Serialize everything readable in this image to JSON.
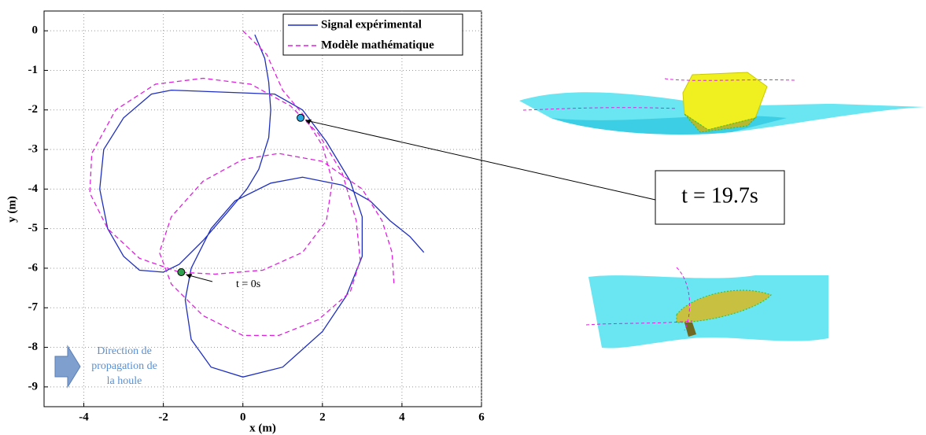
{
  "chart_data": {
    "type": "line",
    "xlabel": "x (m)",
    "ylabel": "y (m)",
    "xlim": [
      -5,
      6
    ],
    "ylim": [
      -9.5,
      0.5
    ],
    "xticks": [
      -4,
      -2,
      0,
      2,
      4,
      6
    ],
    "yticks": [
      0,
      -1,
      -2,
      -3,
      -4,
      -5,
      -6,
      -7,
      -8,
      -9
    ],
    "grid": true,
    "legend": "upper right",
    "series": [
      {
        "name": "Signal expérimental",
        "color": "#1f2fbf",
        "dash": false,
        "x": [
          0.3,
          0.55,
          0.65,
          0.7,
          0.65,
          0.4,
          0.1,
          -0.4,
          -1.0,
          -1.6,
          -2.0,
          -2.6,
          -3.0,
          -3.4,
          -3.6,
          -3.5,
          -3.0,
          -2.3,
          -1.8,
          -0.5,
          0.8,
          1.5,
          2.1,
          2.7,
          3.0,
          3.0,
          2.6,
          2.0,
          1.0,
          0.0,
          -0.8,
          -1.3,
          -1.45,
          -1.3,
          -0.8,
          -0.2,
          0.7,
          1.5,
          2.5,
          3.2,
          3.7,
          4.2,
          4.55
        ],
        "values": [
          -0.1,
          -0.7,
          -1.3,
          -2.0,
          -2.7,
          -3.5,
          -4.0,
          -4.6,
          -5.3,
          -5.9,
          -6.1,
          -6.05,
          -5.7,
          -5.0,
          -4.0,
          -3.0,
          -2.2,
          -1.6,
          -1.5,
          -1.55,
          -1.6,
          -2.0,
          -2.8,
          -3.8,
          -4.7,
          -5.7,
          -6.7,
          -7.6,
          -8.5,
          -8.75,
          -8.5,
          -7.8,
          -6.8,
          -6.0,
          -5.0,
          -4.3,
          -3.85,
          -3.7,
          -3.9,
          -4.3,
          -4.8,
          -5.2,
          -5.6
        ]
      },
      {
        "name": "Modèle mathématique",
        "color": "#e020e0",
        "dash": true,
        "x": [
          0,
          0.6,
          1.0,
          1.5,
          2.0,
          2.25,
          2.1,
          1.5,
          0.5,
          -0.7,
          -1.6,
          -2.6,
          -3.4,
          -3.85,
          -3.8,
          -3.2,
          -2.2,
          -1.0,
          0.2,
          1.2,
          1.9,
          2.5,
          2.85,
          2.95,
          2.7,
          1.9,
          0.9,
          0.0,
          -1.0,
          -1.8,
          -2.1,
          -1.8,
          -1.0,
          0.0,
          0.9,
          2.0,
          3.0,
          3.5,
          3.75,
          3.8
        ],
        "values": [
          0,
          -0.6,
          -1.5,
          -2.1,
          -2.9,
          -3.8,
          -4.8,
          -5.6,
          -6.05,
          -6.15,
          -6.1,
          -5.75,
          -5.0,
          -4.1,
          -3.1,
          -2.0,
          -1.35,
          -1.2,
          -1.35,
          -1.9,
          -2.6,
          -3.6,
          -4.8,
          -5.8,
          -6.6,
          -7.3,
          -7.7,
          -7.7,
          -7.2,
          -6.4,
          -5.6,
          -4.7,
          -3.8,
          -3.25,
          -3.1,
          -3.3,
          -4.0,
          -4.8,
          -5.6,
          -6.4
        ]
      }
    ],
    "markers": [
      {
        "x": -1.55,
        "y": -6.1,
        "color": "#2e9e4f",
        "label": "t = 0s"
      },
      {
        "x": 1.45,
        "y": -2.2,
        "color": "#29a8e0",
        "label": "t = 19.7s"
      }
    ],
    "annotation": [
      "Direction de",
      "propagation de",
      "la houle"
    ]
  }
}
